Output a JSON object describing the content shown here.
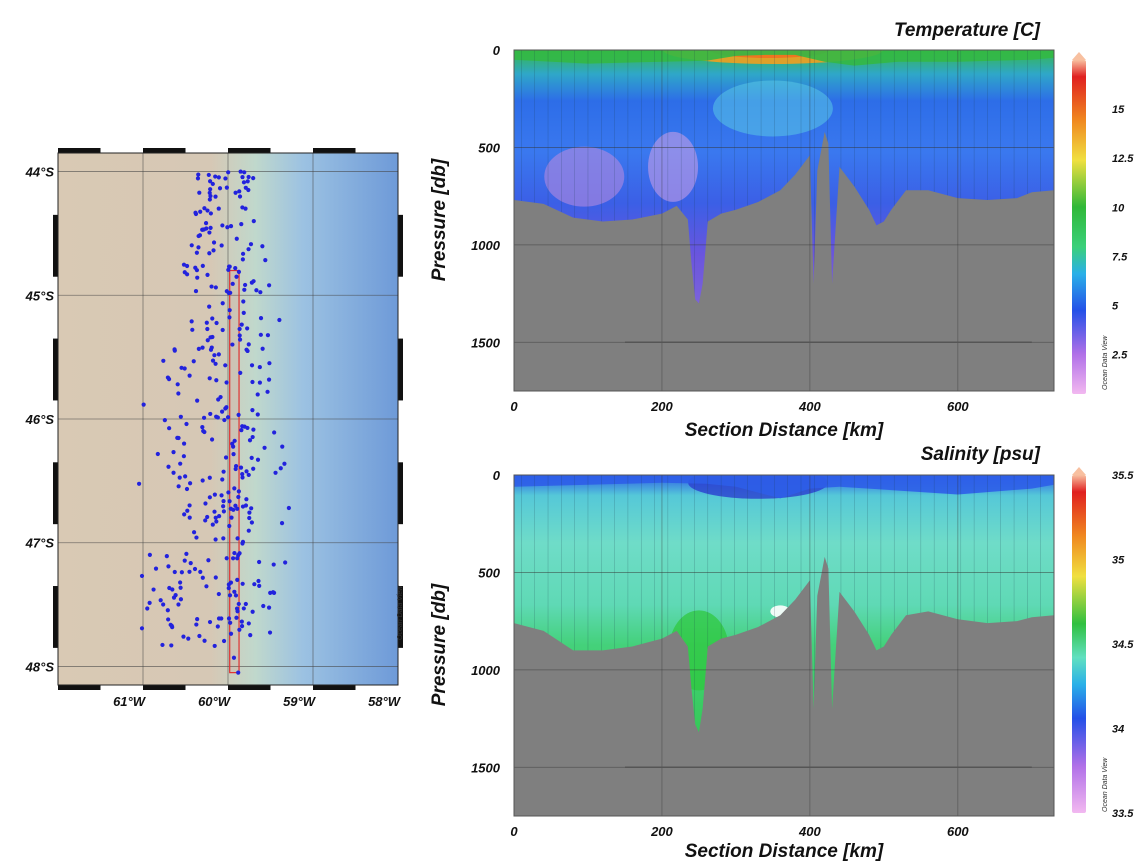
{
  "chart_data": [
    {
      "type": "scatter",
      "panel": "station-map",
      "xlabel": "",
      "ylabel": "",
      "xlim": [
        -62,
        -58
      ],
      "ylim": [
        -48.15,
        -43.85
      ],
      "x_ticks": [
        "61°W",
        "60°W",
        "59°W",
        "58°W"
      ],
      "y_ticks": [
        "44°S",
        "45°S",
        "46°S",
        "47°S",
        "48°S"
      ],
      "watermark": "Ocean Data View",
      "colors": {
        "stations": "#2222dd",
        "section_box": "#e03030",
        "land": "#d8c8b2",
        "shelf": "#b4d8d0",
        "deep": "#6e9ad8"
      },
      "section_box": {
        "lon": [
          -59.98,
          -59.87
        ],
        "lat": [
          -48.05,
          -44.8
        ]
      },
      "series": [
        {
          "name": "",
          "points": [
            [
              -59.93,
              -47.93
            ],
            [
              -59.82,
              -45.05
            ],
            [
              -59.77,
              -45.45
            ],
            [
              -59.95,
              -46.2
            ],
            [
              -59.88,
              -47.1
            ],
            [
              -59.75,
              -46.8
            ],
            [
              -59.9,
              -44.85
            ],
            [
              -59.88,
              -48.05
            ]
          ]
        }
      ]
    },
    {
      "type": "heatmap",
      "panel": "temperature-section",
      "title": "Temperature [C]",
      "xlabel": "Section Distance [km]",
      "ylabel": "Pressure [db]",
      "xlim": [
        0,
        730
      ],
      "ylim": [
        1750,
        0
      ],
      "x_ticks": [
        0,
        200,
        400,
        600
      ],
      "y_ticks": [
        0,
        500,
        1000,
        1500
      ],
      "colorbar": {
        "min": 0.5,
        "max": 17.5,
        "ticks": [
          "15",
          "12.5",
          "10",
          "7.5",
          "5",
          "2.5"
        ],
        "tick_values": [
          15,
          12.5,
          10,
          7.5,
          5,
          2.5
        ]
      },
      "watermark": "Ocean Data View",
      "bottom_depth": {
        "x": [
          0,
          40,
          80,
          120,
          160,
          200,
          220,
          235,
          240,
          245,
          250,
          255,
          262,
          280,
          300,
          330,
          360,
          380,
          390,
          400,
          405,
          410,
          415,
          420,
          425,
          430,
          440,
          460,
          480,
          490,
          500,
          510,
          530,
          560,
          600,
          640,
          680,
          700,
          730
        ],
        "y": [
          770,
          790,
          860,
          880,
          870,
          840,
          800,
          870,
          1100,
          1280,
          1300,
          1200,
          880,
          840,
          820,
          780,
          720,
          640,
          590,
          540,
          1200,
          620,
          520,
          420,
          480,
          1200,
          600,
          700,
          820,
          900,
          880,
          820,
          720,
          720,
          760,
          770,
          760,
          730,
          720
        ]
      },
      "surface_layer": {
        "x": [
          0,
          100,
          200,
          260,
          300,
          340,
          380,
          420,
          460,
          520,
          600,
          700,
          730
        ],
        "y": [
          50,
          70,
          60,
          55,
          30,
          25,
          25,
          60,
          80,
          60,
          60,
          50,
          40
        ]
      }
    },
    {
      "type": "heatmap",
      "panel": "salinity-section",
      "title": "Salinity [psu]",
      "xlabel": "Section Distance [km]",
      "ylabel": "Pressure [db]",
      "xlim": [
        0,
        730
      ],
      "ylim": [
        1750,
        0
      ],
      "x_ticks": [
        0,
        200,
        400,
        600
      ],
      "y_ticks": [
        0,
        500,
        1000,
        1500
      ],
      "colorbar": {
        "min": 33.5,
        "max": 35.5,
        "ticks": [
          "35.5",
          "35",
          "34.5",
          "34",
          "33.5"
        ],
        "tick_values": [
          35.5,
          35,
          34.5,
          34,
          33.5
        ]
      },
      "watermark": "Ocean Data View",
      "bottom_depth": {
        "x": [
          0,
          40,
          80,
          120,
          160,
          200,
          220,
          235,
          240,
          245,
          250,
          255,
          262,
          280,
          300,
          330,
          360,
          380,
          390,
          400,
          405,
          410,
          415,
          420,
          425,
          430,
          440,
          460,
          480,
          490,
          500,
          510,
          530,
          560,
          600,
          640,
          680,
          700,
          730
        ],
        "y": [
          760,
          800,
          900,
          900,
          880,
          840,
          800,
          880,
          1100,
          1280,
          1320,
          1200,
          880,
          840,
          820,
          780,
          720,
          640,
          590,
          540,
          1200,
          620,
          520,
          420,
          480,
          1200,
          600,
          700,
          820,
          900,
          880,
          820,
          720,
          700,
          740,
          760,
          750,
          730,
          720
        ]
      },
      "surface_layer": {
        "x": [
          0,
          100,
          200,
          260,
          300,
          340,
          360,
          400,
          440,
          520,
          600,
          700,
          730
        ],
        "y": [
          60,
          50,
          40,
          45,
          60,
          100,
          120,
          70,
          60,
          80,
          100,
          70,
          50
        ]
      }
    }
  ]
}
